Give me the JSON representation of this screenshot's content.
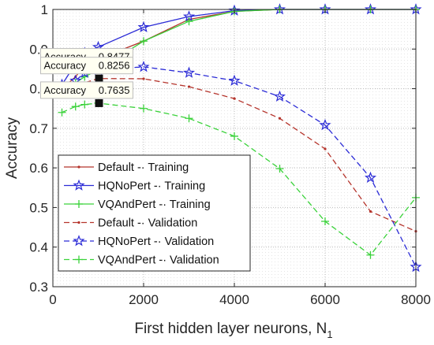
{
  "chart_data": {
    "type": "line",
    "title": "",
    "xlabel": "First hidden layer neurons, N",
    "xlabel_subscript": "1",
    "ylabel": "Accuracy",
    "xlim": [
      0,
      8000
    ],
    "ylim": [
      0.3,
      1.0
    ],
    "grid": true,
    "x_ticks": [
      0,
      2000,
      4000,
      6000,
      8000
    ],
    "x_tick_labels": [
      "0",
      "2000",
      "4000",
      "6000",
      "8000"
    ],
    "y_ticks": [
      0.3,
      0.4,
      0.5,
      0.6,
      0.7,
      0.8,
      0.9,
      1.0
    ],
    "y_tick_labels": [
      "0.3",
      "0.4",
      "0.5",
      "0.6",
      "0.7",
      "0.8",
      "0.9",
      "1"
    ],
    "legend_position": "bottom-left",
    "series": [
      {
        "name": "Default  -· Training",
        "color": "#b5342c",
        "line": "solid",
        "marker": "point",
        "x": [
          200,
          500,
          700,
          1000,
          2000,
          3000,
          4000,
          5000,
          6000,
          7000,
          8000
        ],
        "y": [
          0.8,
          0.83,
          0.86,
          0.875,
          0.92,
          0.975,
          0.995,
          1.0,
          1.0,
          1.0,
          1.0
        ]
      },
      {
        "name": "HQNoPert -· Training",
        "color": "#2b2bd6",
        "line": "solid",
        "marker": "star",
        "x": [
          200,
          500,
          700,
          1000,
          2000,
          3000,
          4000,
          5000,
          6000,
          7000,
          8000
        ],
        "y": [
          0.81,
          0.863,
          0.89,
          0.905,
          0.955,
          0.982,
          0.997,
          1.0,
          1.0,
          1.0,
          1.0
        ]
      },
      {
        "name": "VQAndPert -· Training",
        "color": "#3ad23a",
        "line": "solid",
        "marker": "plus",
        "x": [
          200,
          500,
          700,
          1000,
          2000,
          3000,
          4000,
          5000,
          6000,
          7000,
          8000
        ],
        "y": [
          0.795,
          0.815,
          0.83,
          0.848,
          0.92,
          0.97,
          0.995,
          1.0,
          1.0,
          1.0,
          1.0
        ]
      },
      {
        "name": "Default -· Validation",
        "color": "#b5342c",
        "line": "dashed",
        "marker": "point",
        "x": [
          200,
          500,
          700,
          1000,
          2000,
          3000,
          4000,
          5000,
          6000,
          7000,
          8000
        ],
        "y": [
          0.79,
          0.8,
          0.815,
          0.8256,
          0.825,
          0.805,
          0.775,
          0.725,
          0.648,
          0.49,
          0.44
        ]
      },
      {
        "name": "HQNoPert -· Validation",
        "color": "#2b2bd6",
        "line": "dashed",
        "marker": "star",
        "x": [
          200,
          500,
          700,
          1000,
          2000,
          3000,
          4000,
          5000,
          6000,
          7000,
          8000
        ],
        "y": [
          0.8,
          0.82,
          0.84,
          0.8477,
          0.855,
          0.84,
          0.82,
          0.78,
          0.708,
          0.575,
          0.35
        ]
      },
      {
        "name": "VQAndPert -· Validation",
        "color": "#3ad23a",
        "line": "dashed",
        "marker": "plus",
        "x": [
          200,
          500,
          700,
          1000,
          2000,
          3000,
          4000,
          5000,
          6000,
          7000,
          8000
        ],
        "y": [
          0.74,
          0.755,
          0.76,
          0.7635,
          0.75,
          0.725,
          0.68,
          0.598,
          0.465,
          0.38,
          0.525
        ]
      }
    ],
    "annotations": [
      {
        "label": "Accuracy",
        "value": "0.8477",
        "x": 1000,
        "y": 0.8477
      },
      {
        "label": "Accuracy",
        "value": "0.8256",
        "x": 1000,
        "y": 0.8256
      },
      {
        "label": "Accuracy",
        "value": "0.7635",
        "x": 1000,
        "y": 0.7635
      }
    ]
  }
}
